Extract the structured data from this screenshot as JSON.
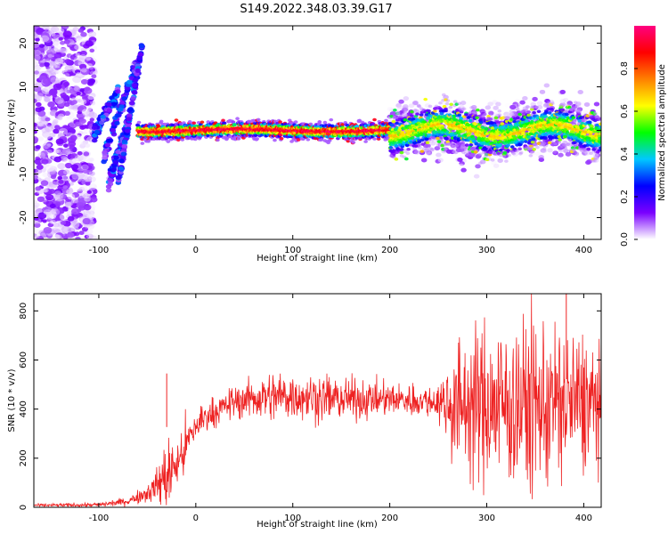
{
  "title": "S149.2022.348.03.39.G17",
  "chart_data": [
    {
      "type": "heatmap",
      "xlabel": "Height of straight line (km)",
      "ylabel": "Frequency (Hz)",
      "xlim": [
        -167,
        418
      ],
      "ylim": [
        -25,
        24
      ],
      "xticks": [
        -100,
        0,
        100,
        200,
        300,
        400
      ],
      "yticks": [
        -20,
        -10,
        0,
        10,
        20
      ],
      "colorbar": {
        "label": "Normalized spectral amplitude",
        "range": [
          0,
          1
        ],
        "ticks": [
          0.0,
          0.2,
          0.4,
          0.6,
          0.8
        ],
        "colormap": [
          "#ffffff",
          "#7a00ff",
          "#0000ff",
          "#00c8ff",
          "#00ff00",
          "#ffff00",
          "#ff8000",
          "#ff0000",
          "#ff0080"
        ]
      },
      "features": {
        "noise_region_x": [
          -167,
          -105
        ],
        "carrier_center_hz": 0.0,
        "fringe_tracks": [
          {
            "x": [
              -105,
              -80
            ],
            "y": [
              -1,
              9
            ]
          },
          {
            "x": [
              -95,
              -60
            ],
            "y": [
              -6,
              16
            ]
          },
          {
            "x": [
              -90,
              -70
            ],
            "y": [
              -12,
              2
            ]
          },
          {
            "x": [
              -80,
              -55
            ],
            "y": [
              -12,
              20
            ]
          }
        ],
        "scatter_spread_x": [
          200,
          418
        ]
      }
    },
    {
      "type": "line",
      "xlabel": "Height of straight line (km)",
      "ylabel": "SNR (10 * v/v)",
      "xlim": [
        -167,
        418
      ],
      "ylim": [
        0,
        870
      ],
      "xticks": [
        -100,
        0,
        100,
        200,
        300,
        400
      ],
      "yticks": [
        0,
        200,
        400,
        600,
        800
      ],
      "series": [
        {
          "color": "#ee2222",
          "x": [
            -167,
            -100,
            -70,
            -50,
            -40,
            -30,
            -20,
            -10,
            0,
            10,
            20,
            40,
            60,
            80,
            100,
            150,
            200,
            250,
            265,
            300,
            350,
            400,
            418
          ],
          "mean": [
            8,
            10,
            25,
            60,
            90,
            130,
            170,
            250,
            330,
            370,
            390,
            430,
            445,
            450,
            455,
            440,
            440,
            430,
            420,
            420,
            415,
            425,
            420
          ],
          "amp": [
            5,
            8,
            15,
            35,
            60,
            150,
            90,
            100,
            70,
            60,
            50,
            60,
            80,
            90,
            90,
            80,
            60,
            60,
            220,
            300,
            320,
            260,
            200
          ]
        }
      ],
      "notable_points": [
        {
          "x": -30,
          "y": 545
        },
        {
          "x": 382,
          "y": 870
        }
      ]
    }
  ]
}
